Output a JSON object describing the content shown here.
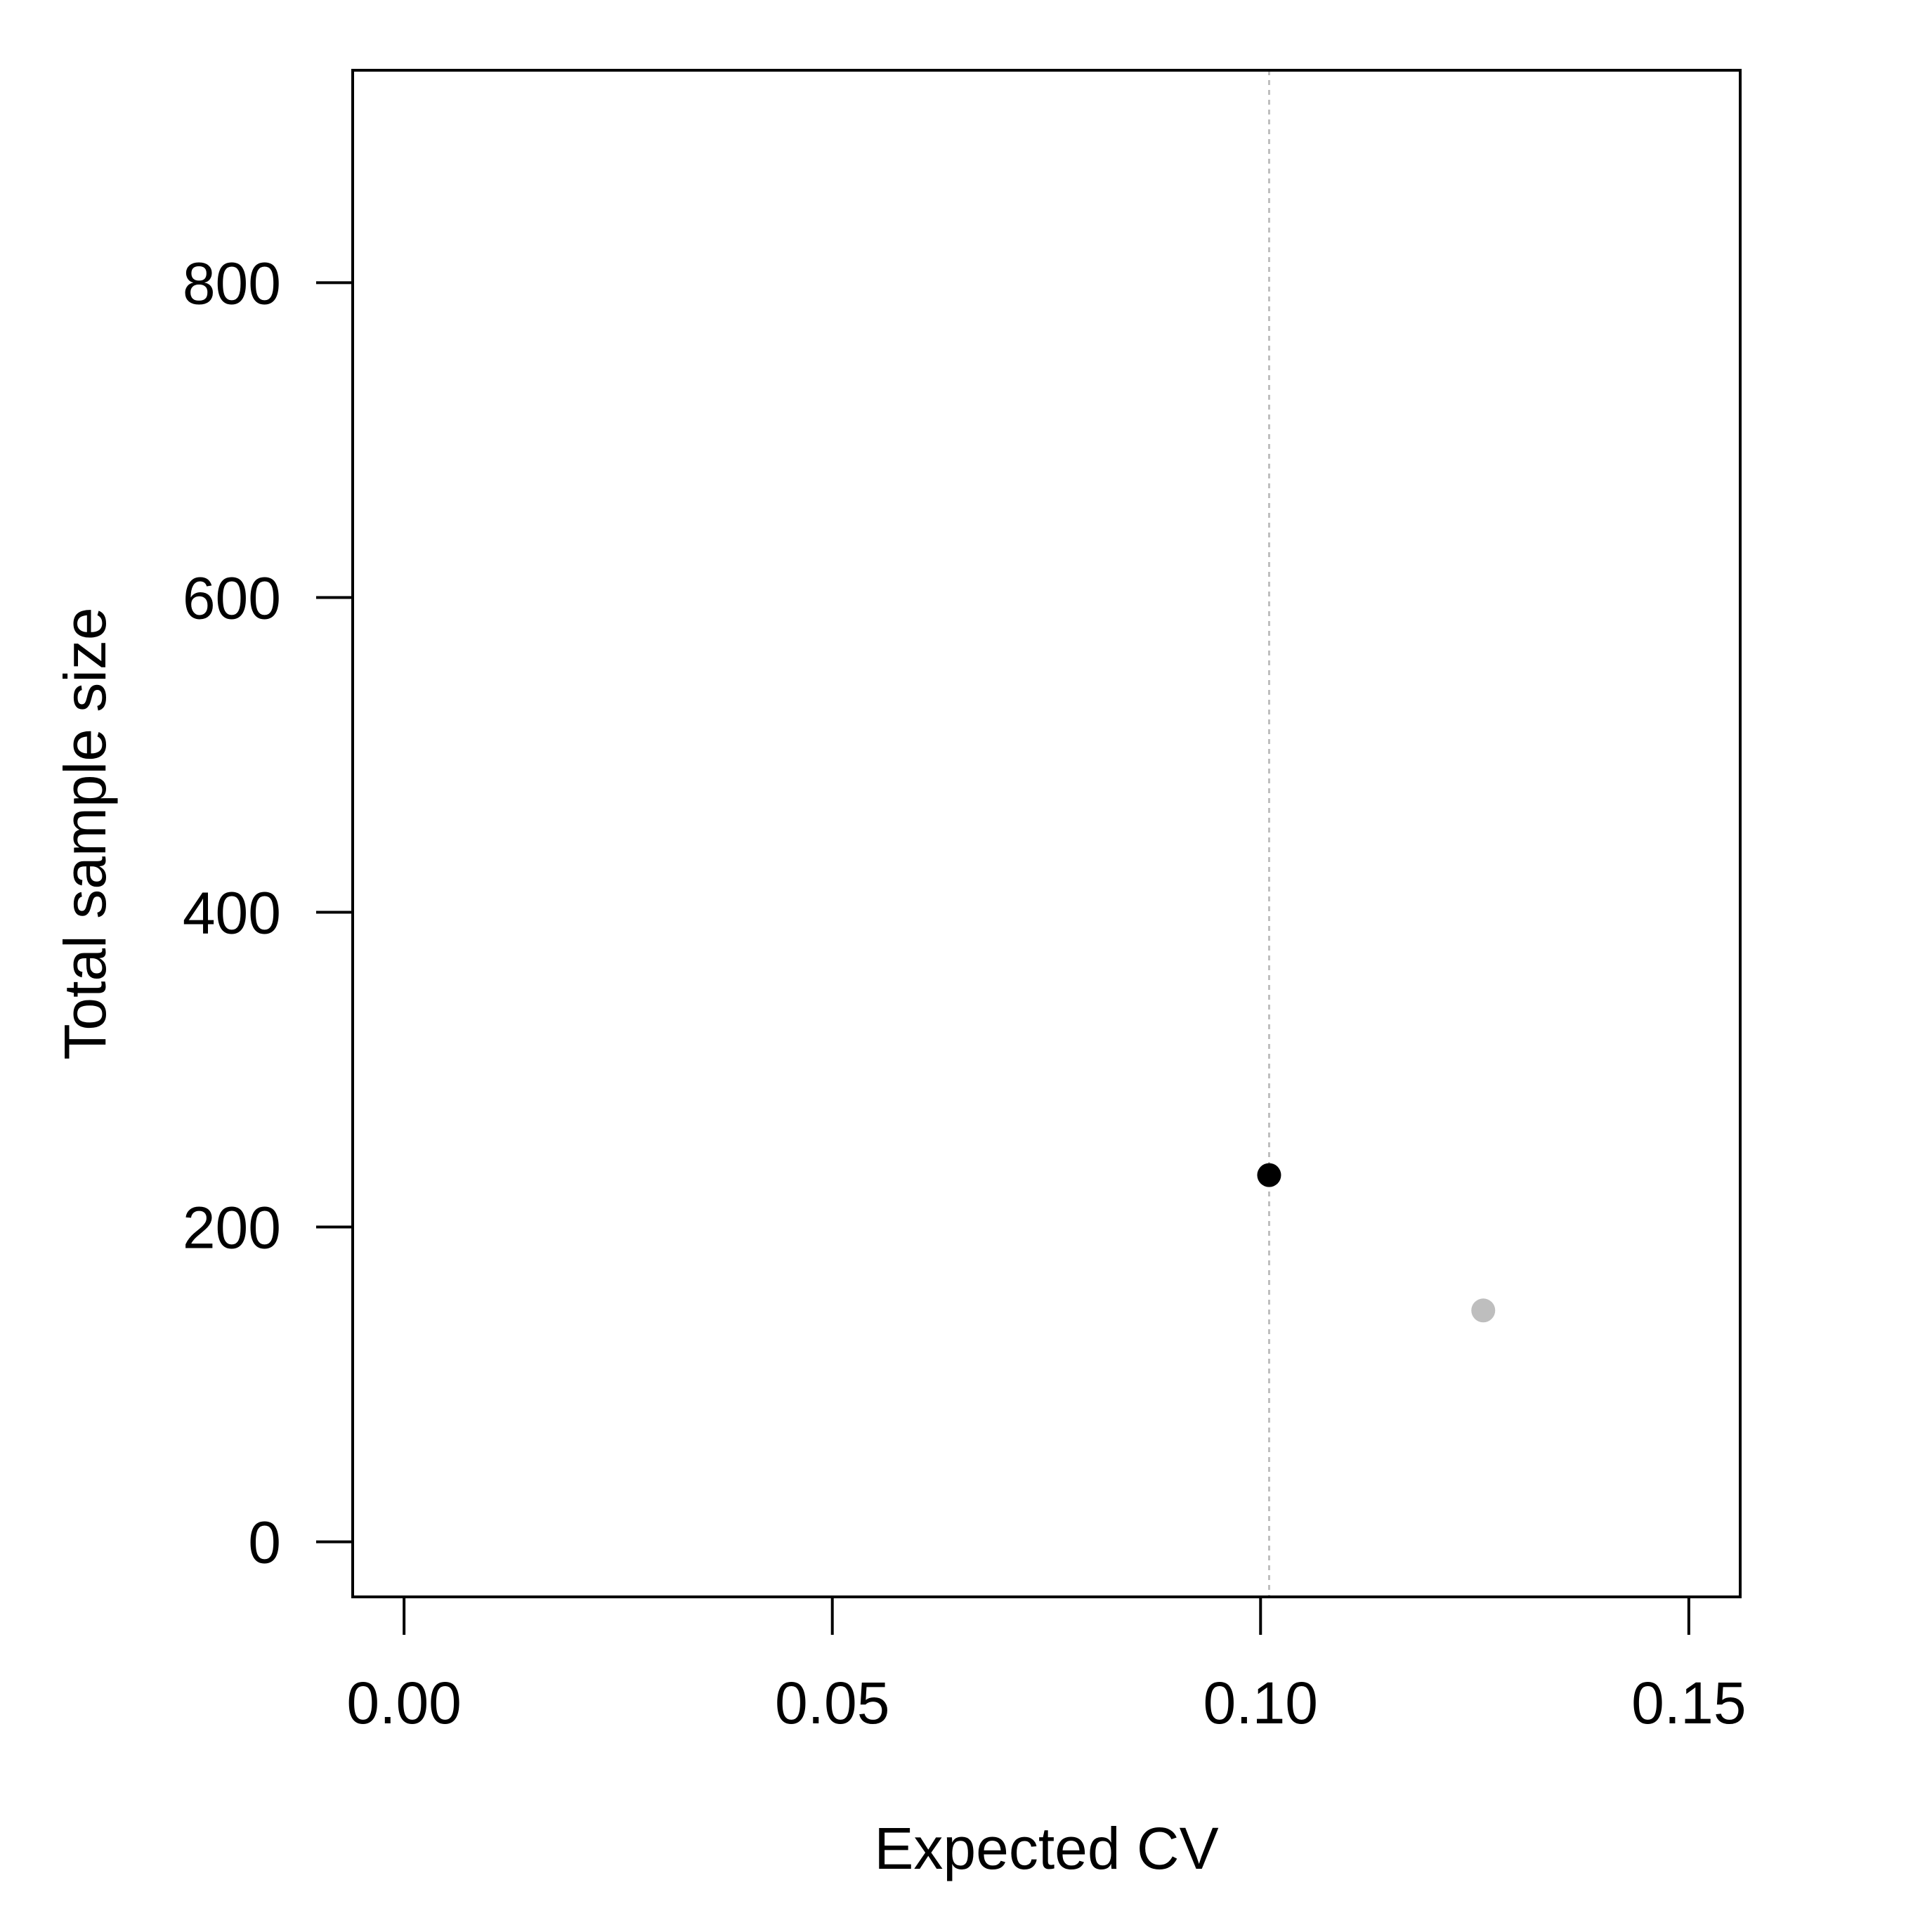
{
  "chart_data": {
    "type": "scatter",
    "title": "",
    "xlabel": "Expected CV",
    "ylabel": "Total sample size",
    "xlim": [
      -0.006,
      0.156
    ],
    "ylim": [
      -35,
      935
    ],
    "x_ticks": [
      0.0,
      0.05,
      0.1,
      0.15
    ],
    "x_tick_labels": [
      "0.00",
      "0.05",
      "0.10",
      "0.15"
    ],
    "y_ticks": [
      0,
      200,
      400,
      600,
      800
    ],
    "y_tick_labels": [
      "0",
      "200",
      "400",
      "600",
      "800"
    ],
    "grid": false,
    "legend": "none",
    "reference_line": {
      "orientation": "vertical",
      "x": 0.101,
      "style": "dotted",
      "color": "#BEBEBE"
    },
    "points": [
      {
        "x": 0.101,
        "y": 233,
        "color": "#000000"
      },
      {
        "x": 0.126,
        "y": 147,
        "color": "#BEBEBE"
      }
    ]
  }
}
